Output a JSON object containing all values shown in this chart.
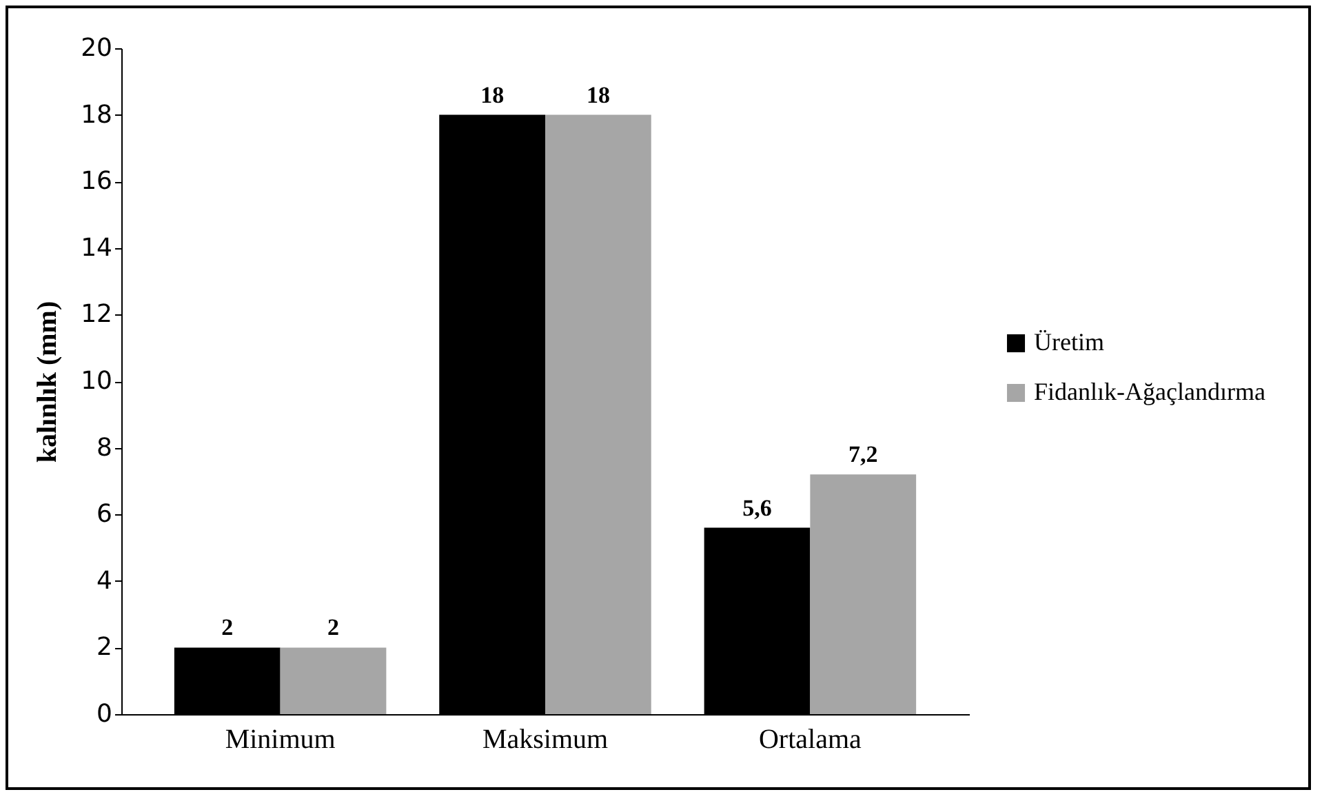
{
  "chart_data": {
    "type": "bar",
    "ylabel": "kalınlık (mm)",
    "categories": [
      "Minimum",
      "Maksimum",
      "Ortalama"
    ],
    "series": [
      {
        "name": "Üretim",
        "color": "#000000",
        "values": [
          2,
          18,
          5.6
        ],
        "value_labels": [
          "2",
          "18",
          "5,6"
        ]
      },
      {
        "name": "Fidanlık-Ağaçlandırma",
        "color": "#a6a6a6",
        "values": [
          2,
          18,
          7.2
        ],
        "value_labels": [
          "2",
          "18",
          "7,2"
        ]
      }
    ],
    "ylim": [
      0,
      20
    ],
    "yticks": [
      0,
      2,
      4,
      6,
      8,
      10,
      12,
      14,
      16,
      18,
      20
    ],
    "grid": false,
    "legend": "right"
  }
}
